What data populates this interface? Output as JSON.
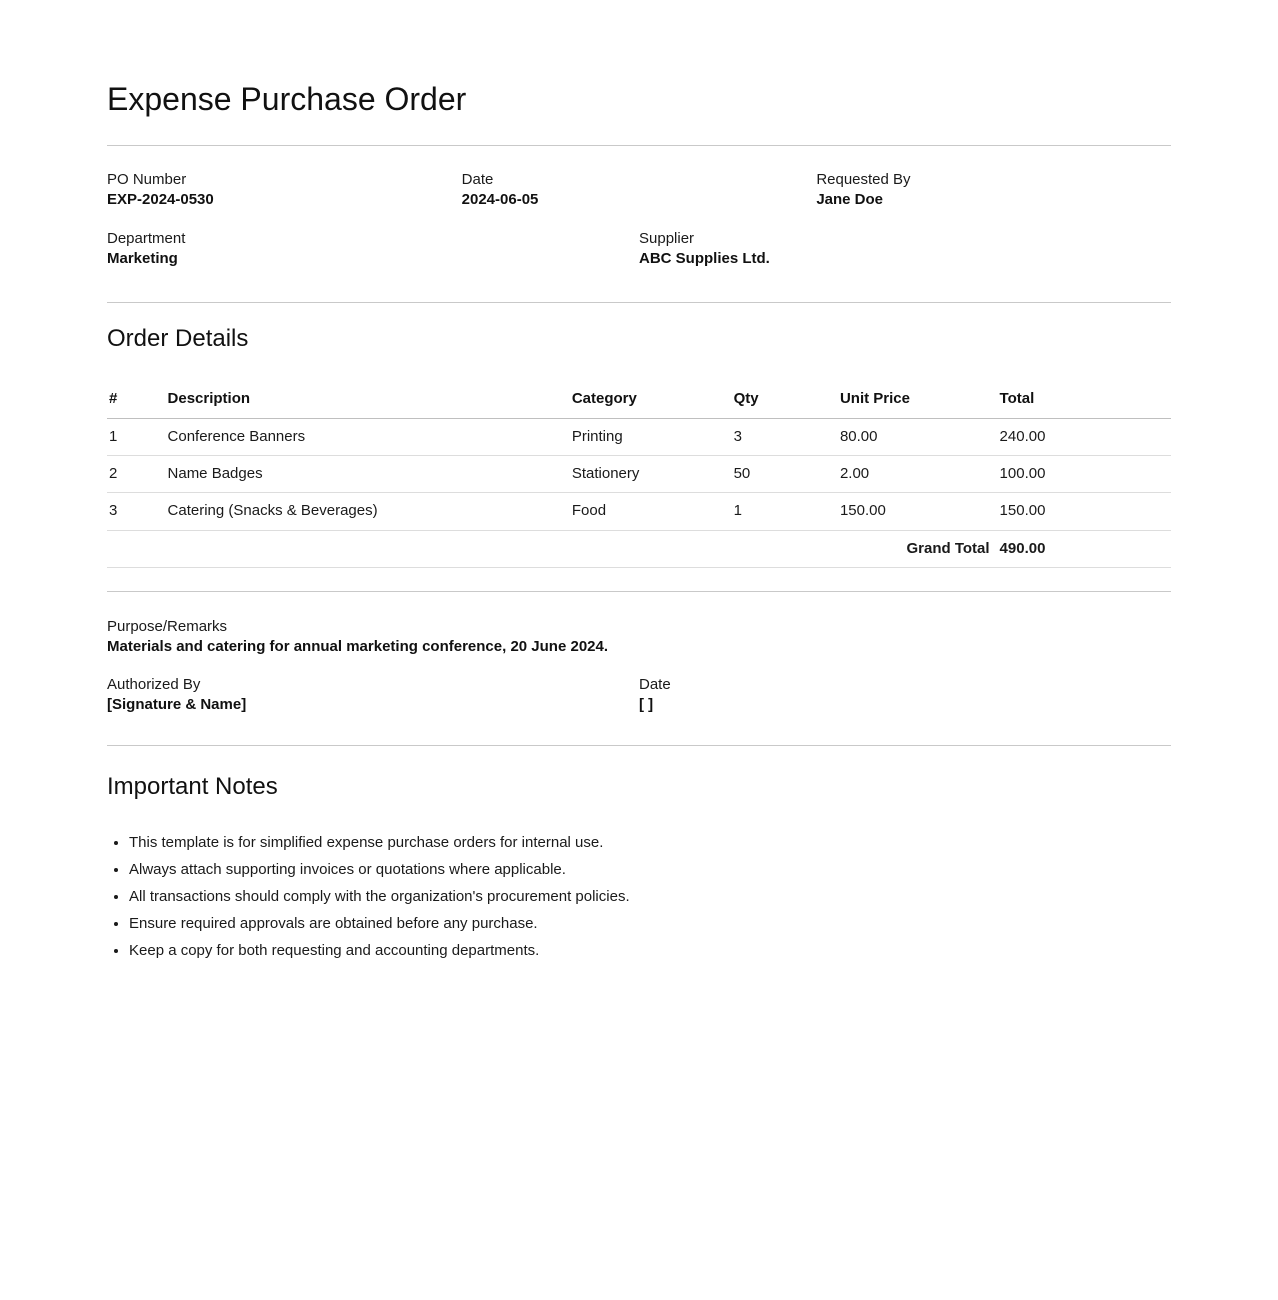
{
  "doc": {
    "title": "Expense Purchase Order",
    "fields": {
      "row1": [
        {
          "label": "PO Number",
          "value": "EXP-2024-0530"
        },
        {
          "label": "Date",
          "value": "2024-06-05"
        },
        {
          "label": "Requested By",
          "value": "Jane Doe"
        }
      ],
      "row2": [
        {
          "label": "Department",
          "value": "Marketing"
        },
        {
          "label": "Supplier",
          "value": "ABC Supplies Ltd."
        }
      ]
    },
    "order": {
      "heading": "Order Details",
      "table": {
        "headers": [
          "#",
          "Description",
          "Category",
          "Qty",
          "Unit Price",
          "Total"
        ],
        "rows": [
          [
            "1",
            "Conference Banners",
            "Printing",
            "3",
            "80.00",
            "240.00"
          ],
          [
            "2",
            "Name Badges",
            "Stationery",
            "50",
            "2.00",
            "100.00"
          ],
          [
            "3",
            "Catering (Snacks & Beverages)",
            "Food",
            "1",
            "150.00",
            "150.00"
          ]
        ],
        "grand_total_label": "Grand Total",
        "grand_total_value": "490.00"
      }
    },
    "remarks": {
      "label": "Purpose/Remarks",
      "value": "Materials and catering for annual marketing conference, 20 June 2024."
    },
    "authorization": [
      {
        "label": "Authorized By",
        "value": "[Signature & Name]"
      },
      {
        "label": "Date",
        "value": "[ ]"
      }
    ],
    "notes": {
      "heading": "Important Notes",
      "items": [
        "This template is for simplified expense purchase orders for internal use.",
        "Always attach supporting invoices or quotations where applicable.",
        "All transactions should comply with the organization's procurement policies.",
        "Ensure required approvals are obtained before any purchase.",
        "Keep a copy for both requesting and accounting departments."
      ]
    }
  }
}
